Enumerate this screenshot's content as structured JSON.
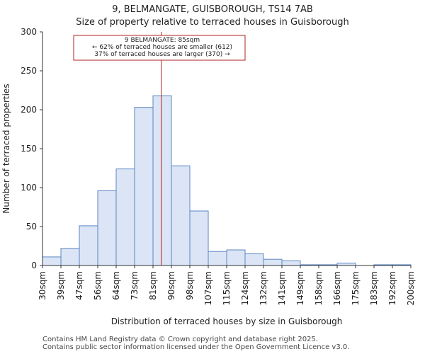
{
  "chart_data": {
    "type": "bar",
    "title": "9, BELMANGATE, GUISBOROUGH, TS14 7AB",
    "subtitle": "Size of property relative to terraced houses in Guisborough",
    "xlabel": "Distribution of terraced houses by size in Guisborough",
    "ylabel": "Number of terraced properties",
    "ylim": [
      0,
      300
    ],
    "yticks": [
      0,
      50,
      100,
      150,
      200,
      250,
      300
    ],
    "bin_edges_sqm": [
      30,
      39,
      47,
      56,
      64,
      73,
      81,
      90,
      98,
      107,
      115,
      124,
      132,
      141,
      149,
      158,
      166,
      175,
      183,
      192,
      200
    ],
    "tick_labels": [
      "30sqm",
      "39sqm",
      "47sqm",
      "56sqm",
      "64sqm",
      "73sqm",
      "81sqm",
      "90sqm",
      "98sqm",
      "107sqm",
      "115sqm",
      "124sqm",
      "132sqm",
      "141sqm",
      "149sqm",
      "158sqm",
      "166sqm",
      "175sqm",
      "183sqm",
      "192sqm",
      "200sqm"
    ],
    "values": [
      11,
      22,
      51,
      96,
      124,
      203,
      218,
      128,
      70,
      18,
      20,
      15,
      8,
      6,
      1,
      1,
      3,
      0,
      1,
      1
    ],
    "marker": {
      "value_sqm": 85
    },
    "annotation": {
      "line1": "9 BELMANGATE: 85sqm",
      "line2": "← 62% of terraced houses are smaller (612)",
      "line3": "37% of terraced houses are larger (370) →"
    },
    "colors": {
      "bar_fill": "#dbe5f5",
      "bar_edge": "#5b86c4",
      "marker": "#b22222",
      "axis": "#333333"
    }
  },
  "footer": {
    "line1": "Contains HM Land Registry data © Crown copyright and database right 2025.",
    "line2": "Contains public sector information licensed under the Open Government Licence v3.0."
  }
}
